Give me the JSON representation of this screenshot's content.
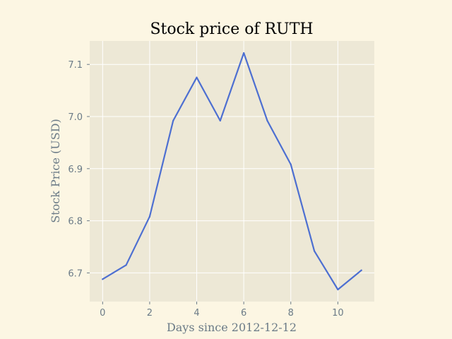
{
  "colors": {
    "page_background": "#fcf6e3",
    "plot_background": "#ede8d6",
    "grid": "#ffffff",
    "line": "#4d6fd1",
    "tick": "#6b7b87",
    "title": "#000000"
  },
  "chart_data": {
    "type": "line",
    "title": "Stock price of RUTH",
    "xlabel": "Days since 2012-12-12",
    "ylabel": "Stock Price (USD)",
    "x": [
      0,
      1,
      2,
      3,
      4,
      5,
      6,
      7,
      8,
      9,
      10,
      11
    ],
    "series": [
      {
        "values": [
          6.688,
          6.715,
          6.808,
          6.992,
          7.075,
          6.992,
          7.122,
          6.992,
          6.908,
          6.742,
          6.668,
          6.705
        ]
      }
    ],
    "xlim": [
      -0.55,
      11.55
    ],
    "ylim": [
      6.645,
      7.145
    ],
    "xticks": [
      0,
      2,
      4,
      6,
      8,
      10
    ],
    "xtick_labels": [
      "0",
      "2",
      "4",
      "6",
      "8",
      "10"
    ],
    "yticks": [
      6.7,
      6.8,
      6.9,
      7.0,
      7.1
    ],
    "ytick_labels": [
      "6.7",
      "6.8",
      "6.9",
      "7.0",
      "7.1"
    ],
    "grid": true,
    "legend": "none"
  }
}
